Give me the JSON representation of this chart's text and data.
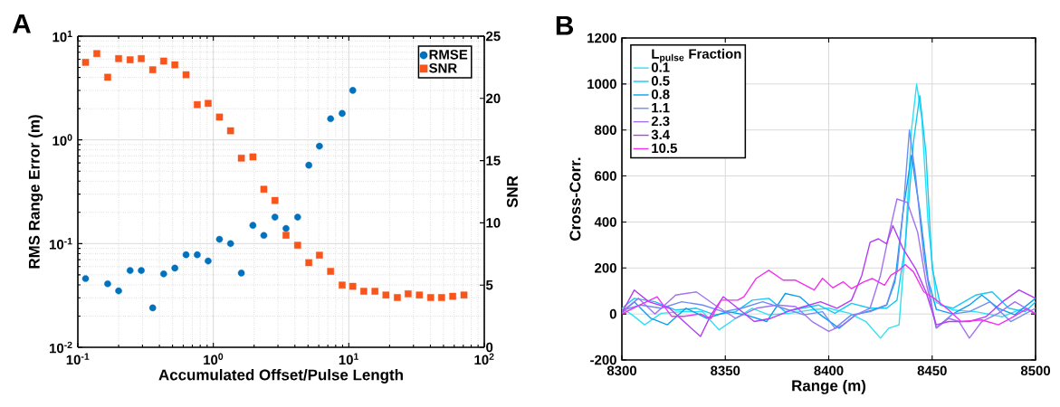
{
  "chart_data": [
    {
      "type": "scatter",
      "title": "A",
      "xlabel": "Accumulated Offset/Pulse Length",
      "ylabel": "RMS Range Error (m)",
      "y2label": "SNR",
      "log": "xy",
      "grid": true,
      "legend": "top right",
      "xlim": [
        0.1,
        100
      ],
      "xticks": [
        {
          "value": 0.1,
          "label": "10$^{-1}$"
        },
        {
          "value": 1,
          "label": "10$^{0}$"
        },
        {
          "value": 10,
          "label": "10$^{1}$"
        },
        {
          "value": 100,
          "label": "10$^{2}$"
        }
      ],
      "ylim": [
        0.01,
        10
      ],
      "yticks": [
        {
          "value": 0.01,
          "label": "10$^{-2}$"
        },
        {
          "value": 0.1,
          "label": "10$^{-1}$"
        },
        {
          "value": 1,
          "label": "10$^{0}$"
        },
        {
          "value": 10,
          "label": "10$^{1}$"
        }
      ],
      "y2lim": [
        0,
        25
      ],
      "y2ticks": [
        0,
        5,
        10,
        15,
        20,
        25
      ],
      "series": [
        {
          "name": "RMSE",
          "color": "#0072bd",
          "marker": "circle",
          "x": [
            0.114,
            0.166,
            0.2,
            0.243,
            0.294,
            0.357,
            0.43,
            0.52,
            0.629,
            0.761,
            0.916,
            1.11,
            1.34,
            1.61,
            1.96,
            2.36,
            2.85,
            3.44,
            4.19,
            5.07,
            6.07,
            7.34,
            8.93,
            10.7
          ],
          "values": [
            0.046,
            0.041,
            0.035,
            0.055,
            0.055,
            0.024,
            0.051,
            0.058,
            0.078,
            0.078,
            0.068,
            0.11,
            0.1,
            0.052,
            0.15,
            0.12,
            0.18,
            0.14,
            0.18,
            0.57,
            0.87,
            1.6,
            1.8,
            3.0
          ]
        },
        {
          "name": "SNR",
          "color": "#f9541a",
          "marker": "square",
          "axis": "y2",
          "x": [
            0.114,
            0.138,
            0.166,
            0.2,
            0.243,
            0.294,
            0.357,
            0.43,
            0.52,
            0.629,
            0.761,
            0.916,
            1.11,
            1.34,
            1.61,
            1.96,
            2.36,
            2.85,
            3.44,
            4.19,
            5.07,
            6.07,
            7.34,
            8.93,
            10.7,
            12.9,
            15.6,
            18.8,
            22.8,
            27.4,
            33.2,
            40.2,
            48.4,
            58.5,
            70.8
          ],
          "values": [
            22.9,
            23.6,
            21.7,
            23.2,
            23.1,
            23.2,
            22.3,
            23.0,
            22.7,
            21.9,
            19.5,
            19.6,
            18.5,
            17.4,
            15.2,
            15.3,
            12.7,
            11.8,
            9.0,
            8.2,
            6.8,
            7.4,
            6.1,
            5.0,
            4.9,
            4.5,
            4.5,
            4.2,
            4.0,
            4.3,
            4.2,
            4.0,
            4.0,
            4.1,
            4.2
          ]
        }
      ]
    },
    {
      "type": "line",
      "title": "B",
      "xlabel": "Range (m)",
      "ylabel": "Cross-Corr.",
      "legend_title": "L$_{pulse}$ Fraction",
      "grid": true,
      "legend": "top left",
      "line_style": "solid",
      "xlim": [
        8300,
        8500
      ],
      "xticks": [
        8300,
        8350,
        8400,
        8450,
        8500
      ],
      "ylim": [
        -200,
        1200
      ],
      "yticks": [
        -200,
        0,
        200,
        400,
        600,
        800,
        1000,
        1200
      ],
      "series": [
        {
          "name": "0.1",
          "color": "#2de2f2",
          "x": [
            8300,
            8305,
            8311,
            8319,
            8329,
            8339,
            8347,
            8355,
            8363,
            8371,
            8381,
            8391,
            8400,
            8410,
            8418,
            8425,
            8429,
            8434,
            8437,
            8440,
            8442.5,
            8445,
            8448,
            8452,
            8460,
            8471,
            8484,
            8494,
            8500
          ],
          "values": [
            25,
            -4,
            -47,
            3,
            10,
            10,
            -69,
            -19,
            25,
            -4,
            3,
            17,
            25,
            3,
            -33,
            -105,
            -62,
            -47,
            300,
            800,
            1000,
            850,
            400,
            50,
            17,
            10,
            -12,
            25,
            3
          ]
        },
        {
          "name": "0.5",
          "color": "#17c8f4",
          "x": [
            8300,
            8306,
            8316,
            8326,
            8336,
            8345,
            8355,
            8363,
            8371,
            8379,
            8387,
            8395,
            8403,
            8411,
            8420,
            8428,
            8433,
            8437,
            8441,
            8444,
            8447,
            8450,
            8454,
            8460,
            8471,
            8479,
            8487,
            8495,
            8500
          ],
          "values": [
            25,
            68,
            53,
            17,
            25,
            -4,
            10,
            60,
            68,
            10,
            25,
            39,
            3,
            46,
            25,
            25,
            60,
            300,
            750,
            950,
            700,
            200,
            39,
            25,
            82,
            96,
            25,
            10,
            53
          ]
        },
        {
          "name": "0.8",
          "color": "#0a9ff0",
          "x": [
            8300,
            8306,
            8314,
            8322,
            8331,
            8341,
            8351,
            8360,
            8370,
            8379,
            8386,
            8396,
            8405,
            8413,
            8421,
            8428,
            8432,
            8436,
            8440,
            8444,
            8448,
            8452,
            8460,
            8468,
            8474,
            8482,
            8490,
            8500
          ],
          "values": [
            5,
            53,
            -19,
            -47,
            25,
            -19,
            10,
            -4,
            -33,
            89,
            75,
            -4,
            -62,
            -4,
            17,
            39,
            140,
            450,
            690,
            450,
            150,
            20,
            0,
            39,
            82,
            25,
            -4,
            68
          ]
        },
        {
          "name": "1.1",
          "color": "#6f8cf2",
          "x": [
            8300,
            8309,
            8319,
            8329,
            8339,
            8349,
            8358,
            8368,
            8378,
            8388,
            8397,
            8403,
            8411,
            8420,
            8428,
            8433,
            8436,
            8439,
            8442,
            8446,
            8450,
            8452,
            8460,
            8468,
            8478,
            8488,
            8500
          ],
          "values": [
            15,
            39,
            25,
            53,
            39,
            10,
            25,
            53,
            25,
            -4,
            10,
            -62,
            -4,
            10,
            39,
            183,
            450,
            800,
            600,
            250,
            30,
            -60,
            0,
            10,
            53,
            -33,
            25
          ]
        },
        {
          "name": "2.3",
          "color": "#a272f2",
          "x": [
            8300,
            8308,
            8316,
            8326,
            8336,
            8345,
            8355,
            8365,
            8375,
            8384,
            8392,
            8400,
            8407,
            8413,
            8420,
            8425,
            8429,
            8433,
            8438,
            8443,
            8447,
            8452,
            8458,
            8463,
            8468,
            8474,
            8482,
            8490,
            8500
          ],
          "values": [
            10,
            68,
            0,
            82,
            96,
            39,
            -19,
            25,
            39,
            32,
            -33,
            -76,
            -47,
            -4,
            25,
            168,
            341,
            500,
            485,
            355,
            140,
            -62,
            -19,
            -33,
            -105,
            -33,
            3,
            53,
            0
          ]
        },
        {
          "name": "3.4",
          "color": "#b43cf2",
          "x": [
            8300,
            8306,
            8313,
            8323,
            8330,
            8338,
            8343,
            8349,
            8356,
            8364,
            8372,
            8382,
            8388,
            8396,
            8404,
            8411,
            8416,
            8420,
            8424,
            8428,
            8431,
            8436,
            8442,
            8447,
            8452,
            8458,
            8468,
            8476,
            8484,
            8492,
            8500
          ],
          "values": [
            5,
            104,
            53,
            25,
            -33,
            -98,
            -5,
            75,
            25,
            -33,
            -19,
            17,
            32,
            53,
            25,
            60,
            168,
            312,
            327,
            305,
            384,
            283,
            197,
            96,
            -47,
            -33,
            -33,
            -12,
            53,
            104,
            68
          ]
        },
        {
          "name": "10.5",
          "color": "#f032ee",
          "x": [
            8300,
            8309,
            8317,
            8324,
            8330,
            8338,
            8343,
            8348,
            8356,
            8359,
            8365,
            8371,
            8378,
            8384,
            8393,
            8397,
            8402,
            8407,
            8411,
            8417,
            8421,
            8427,
            8430,
            8434,
            8437,
            8441,
            8446,
            8451,
            8458,
            8464,
            8474,
            8482,
            8488,
            8496,
            8500
          ],
          "values": [
            0,
            40,
            75,
            -10,
            -10,
            0,
            -20,
            60,
            60,
            75,
            155,
            190,
            147,
            147,
            104,
            155,
            114,
            140,
            110,
            140,
            154,
            125,
            168,
            190,
            215,
            183,
            96,
            68,
            17,
            -33,
            -26,
            -47,
            -19,
            24,
            0
          ]
        }
      ]
    }
  ]
}
